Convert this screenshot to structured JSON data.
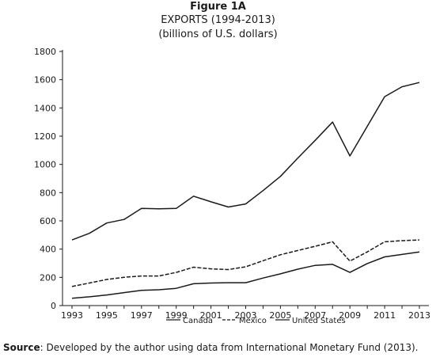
{
  "chart_data": {
    "type": "line",
    "title": "Figure 1A",
    "subtitle": [
      "EXPORTS (1994-2013)",
      "(billions of U.S. dollars)"
    ],
    "xlabel": "",
    "ylabel": "",
    "x": [
      1993,
      1994,
      1995,
      1996,
      1997,
      1998,
      1999,
      2000,
      2001,
      2002,
      2003,
      2004,
      2005,
      2006,
      2007,
      2008,
      2009,
      2010,
      2011,
      2012,
      2013
    ],
    "x_ticks": [
      "1993",
      "1995",
      "1997",
      "1999",
      "2001",
      "2003",
      "2005",
      "2007",
      "2009",
      "2011",
      "2013"
    ],
    "ylim": [
      0,
      1800
    ],
    "y_ticks": [
      "0",
      "200",
      "400",
      "600",
      "800",
      "1000",
      "1200",
      "1400",
      "1600",
      "1800"
    ],
    "series": [
      {
        "name": "United States",
        "style": "solid",
        "color": "#1a1a1a",
        "values": [
          465,
          512,
          585,
          610,
          688,
          685,
          688,
          775,
          735,
          698,
          720,
          815,
          915,
          1045,
          1170,
          1300,
          1060,
          null,
          1480,
          1550,
          1580
        ]
      },
      {
        "name": "Mexico",
        "style": "dashed",
        "color": "#1a1a1a",
        "values": [
          135,
          160,
          185,
          200,
          210,
          210,
          235,
          272,
          260,
          255,
          275,
          318,
          360,
          390,
          420,
          452,
          315,
          380,
          452,
          460,
          465
        ]
      },
      {
        "name": "Canada",
        "style": "solid",
        "color": "#1a1a1a",
        "values": [
          52,
          62,
          75,
          92,
          108,
          112,
          122,
          155,
          160,
          162,
          162,
          195,
          225,
          258,
          285,
          292,
          235,
          298,
          345,
          362,
          380
        ]
      }
    ],
    "legend": [
      "Canada",
      "Mexico",
      "United States"
    ],
    "legend_position": "bottom",
    "grid": false
  },
  "source": {
    "label": "Source",
    "text": ": Developed by the author using data from International Monetary Fund (2013)."
  }
}
